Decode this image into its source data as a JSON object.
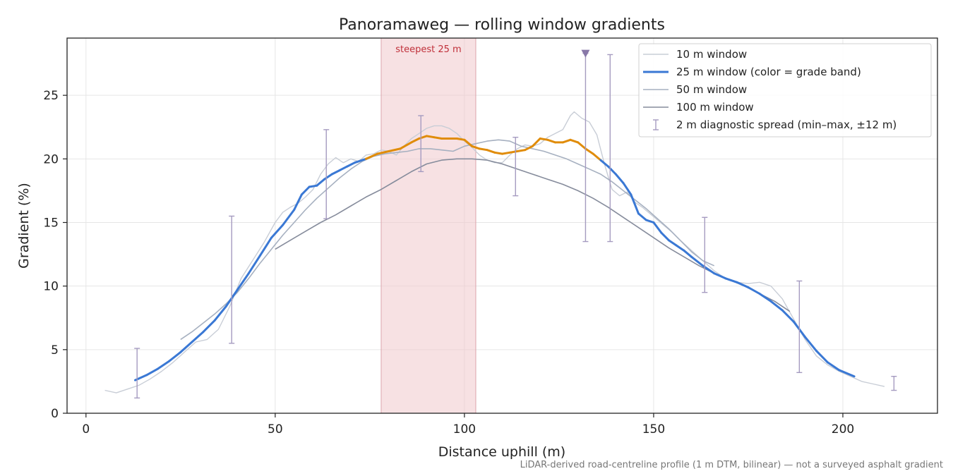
{
  "chart_data": {
    "type": "line",
    "title": "Panoramaweg — rolling window gradients",
    "xlabel": "Distance uphill (m)",
    "ylabel": "Gradient (%)",
    "xlim": [
      -5,
      225
    ],
    "ylim": [
      0,
      29.5
    ],
    "x_ticks": [
      0,
      50,
      100,
      150,
      200
    ],
    "y_ticks": [
      0,
      5,
      10,
      15,
      20,
      25
    ],
    "grid": true,
    "legend_position": "top-right",
    "footnote": "LiDAR-derived road-centreline profile (1 m DTM, bilinear) — not a surveyed asphalt gradient",
    "highlight": {
      "label": "steepest 25 m",
      "x_start": 78,
      "x_end": 103,
      "color": "#f0c8cc"
    },
    "marker": {
      "x": 132,
      "y": 28.3,
      "color": "#8878a8"
    },
    "grade_band_colors": {
      "below_20": "#3a78d4",
      "above_20": "#e08c0a"
    },
    "series": [
      {
        "name": "10 m window",
        "color": "#c8cdd6",
        "width": 1.4,
        "points": [
          [
            5,
            1.8
          ],
          [
            8,
            1.6
          ],
          [
            11,
            1.9
          ],
          [
            14,
            2.2
          ],
          [
            17,
            2.7
          ],
          [
            20,
            3.3
          ],
          [
            23,
            4.0
          ],
          [
            26,
            4.8
          ],
          [
            29,
            5.6
          ],
          [
            32,
            5.8
          ],
          [
            35,
            6.6
          ],
          [
            38,
            8.4
          ],
          [
            41,
            10.6
          ],
          [
            44,
            12.0
          ],
          [
            47,
            13.4
          ],
          [
            50,
            15.0
          ],
          [
            52,
            15.8
          ],
          [
            54,
            16.2
          ],
          [
            56,
            16.5
          ],
          [
            58,
            17.0
          ],
          [
            60,
            17.6
          ],
          [
            62,
            18.8
          ],
          [
            64,
            19.6
          ],
          [
            66,
            20.1
          ],
          [
            68,
            19.7
          ],
          [
            70,
            20.0
          ],
          [
            72,
            19.8
          ],
          [
            74,
            20.3
          ],
          [
            76,
            20.4
          ],
          [
            78,
            20.7
          ],
          [
            80,
            20.6
          ],
          [
            82,
            20.3
          ],
          [
            84,
            21.0
          ],
          [
            86,
            21.6
          ],
          [
            88,
            22.0
          ],
          [
            90,
            22.4
          ],
          [
            92,
            22.6
          ],
          [
            94,
            22.6
          ],
          [
            96,
            22.4
          ],
          [
            98,
            22.0
          ],
          [
            100,
            21.4
          ],
          [
            102,
            20.9
          ],
          [
            104,
            20.3
          ],
          [
            106,
            19.9
          ],
          [
            108,
            19.7
          ],
          [
            110,
            19.7
          ],
          [
            112,
            20.3
          ],
          [
            114,
            20.8
          ],
          [
            116,
            21.1
          ],
          [
            118,
            21.0
          ],
          [
            120,
            21.2
          ],
          [
            122,
            21.7
          ],
          [
            124,
            22.0
          ],
          [
            126,
            22.3
          ],
          [
            128,
            23.4
          ],
          [
            129,
            23.7
          ],
          [
            131,
            23.2
          ],
          [
            133,
            22.9
          ],
          [
            135,
            21.9
          ],
          [
            137,
            19.6
          ],
          [
            139,
            17.6
          ],
          [
            141,
            17.1
          ],
          [
            143,
            17.4
          ],
          [
            145,
            16.6
          ],
          [
            147,
            16.2
          ],
          [
            149,
            15.7
          ],
          [
            151,
            15.2
          ],
          [
            153,
            14.7
          ],
          [
            155,
            14.2
          ],
          [
            157,
            13.6
          ],
          [
            160,
            12.8
          ],
          [
            163,
            12.0
          ],
          [
            166,
            11.2
          ],
          [
            169,
            10.6
          ],
          [
            172,
            10.3
          ],
          [
            175,
            10.2
          ],
          [
            178,
            10.3
          ],
          [
            181,
            10.0
          ],
          [
            184,
            9.0
          ],
          [
            187,
            7.4
          ],
          [
            190,
            5.8
          ],
          [
            193,
            4.5
          ],
          [
            196,
            3.8
          ],
          [
            199,
            3.3
          ],
          [
            202,
            2.9
          ],
          [
            205,
            2.5
          ],
          [
            208,
            2.3
          ],
          [
            211,
            2.1
          ]
        ]
      },
      {
        "name": "25 m window (color = grade band)",
        "color": "#3a78d4",
        "width": 3,
        "points": [
          [
            13,
            2.6
          ],
          [
            16,
            3.0
          ],
          [
            19,
            3.5
          ],
          [
            22,
            4.1
          ],
          [
            25,
            4.8
          ],
          [
            28,
            5.6
          ],
          [
            31,
            6.4
          ],
          [
            34,
            7.3
          ],
          [
            37,
            8.4
          ],
          [
            40,
            9.7
          ],
          [
            43,
            11.0
          ],
          [
            46,
            12.4
          ],
          [
            49,
            13.8
          ],
          [
            52,
            14.8
          ],
          [
            55,
            16.0
          ],
          [
            57,
            17.2
          ],
          [
            59,
            17.8
          ],
          [
            61,
            17.9
          ],
          [
            63,
            18.4
          ],
          [
            65,
            18.8
          ],
          [
            67,
            19.1
          ],
          [
            69,
            19.4
          ],
          [
            71,
            19.7
          ],
          [
            74,
            20.0
          ],
          [
            77,
            20.4
          ],
          [
            80,
            20.6
          ],
          [
            83,
            20.8
          ],
          [
            86,
            21.3
          ],
          [
            88,
            21.6
          ],
          [
            90,
            21.8
          ],
          [
            92,
            21.7
          ],
          [
            94,
            21.6
          ],
          [
            96,
            21.6
          ],
          [
            98,
            21.6
          ],
          [
            100,
            21.5
          ],
          [
            102,
            21.0
          ],
          [
            104,
            20.8
          ],
          [
            106,
            20.7
          ],
          [
            108,
            20.5
          ],
          [
            110,
            20.4
          ],
          [
            112,
            20.5
          ],
          [
            114,
            20.6
          ],
          [
            116,
            20.7
          ],
          [
            118,
            21.0
          ],
          [
            120,
            21.6
          ],
          [
            122,
            21.5
          ],
          [
            124,
            21.3
          ],
          [
            126,
            21.3
          ],
          [
            128,
            21.5
          ],
          [
            130,
            21.3
          ],
          [
            132,
            20.8
          ],
          [
            134,
            20.4
          ],
          [
            136,
            19.9
          ],
          [
            138,
            19.4
          ],
          [
            140,
            18.8
          ],
          [
            142,
            18.1
          ],
          [
            144,
            17.2
          ],
          [
            146,
            15.7
          ],
          [
            148,
            15.2
          ],
          [
            150,
            15.0
          ],
          [
            152,
            14.2
          ],
          [
            154,
            13.6
          ],
          [
            156,
            13.2
          ],
          [
            158,
            12.8
          ],
          [
            160,
            12.3
          ],
          [
            163,
            11.6
          ],
          [
            166,
            11.0
          ],
          [
            169,
            10.6
          ],
          [
            172,
            10.3
          ],
          [
            175,
            9.9
          ],
          [
            178,
            9.4
          ],
          [
            181,
            8.8
          ],
          [
            184,
            8.1
          ],
          [
            187,
            7.2
          ],
          [
            190,
            6.0
          ],
          [
            193,
            4.9
          ],
          [
            196,
            4.0
          ],
          [
            199,
            3.4
          ],
          [
            203,
            2.9
          ]
        ]
      },
      {
        "name": "50 m window",
        "color": "#a6b0c0",
        "width": 1.6,
        "points": [
          [
            25,
            5.8
          ],
          [
            28,
            6.4
          ],
          [
            31,
            7.1
          ],
          [
            34,
            7.8
          ],
          [
            37,
            8.6
          ],
          [
            40,
            9.5
          ],
          [
            43,
            10.6
          ],
          [
            46,
            11.8
          ],
          [
            49,
            12.9
          ],
          [
            52,
            14.0
          ],
          [
            55,
            15.0
          ],
          [
            58,
            16.0
          ],
          [
            61,
            16.9
          ],
          [
            64,
            17.7
          ],
          [
            67,
            18.5
          ],
          [
            70,
            19.2
          ],
          [
            73,
            19.8
          ],
          [
            76,
            20.2
          ],
          [
            79,
            20.4
          ],
          [
            82,
            20.5
          ],
          [
            85,
            20.6
          ],
          [
            88,
            20.8
          ],
          [
            91,
            20.8
          ],
          [
            94,
            20.7
          ],
          [
            97,
            20.6
          ],
          [
            100,
            21.0
          ],
          [
            103,
            21.2
          ],
          [
            106,
            21.4
          ],
          [
            109,
            21.5
          ],
          [
            112,
            21.4
          ],
          [
            115,
            21.0
          ],
          [
            118,
            20.8
          ],
          [
            121,
            20.6
          ],
          [
            124,
            20.3
          ],
          [
            127,
            20.0
          ],
          [
            130,
            19.6
          ],
          [
            133,
            19.2
          ],
          [
            136,
            18.8
          ],
          [
            139,
            18.2
          ],
          [
            142,
            17.5
          ],
          [
            145,
            16.8
          ],
          [
            148,
            16.1
          ],
          [
            151,
            15.3
          ],
          [
            154,
            14.5
          ],
          [
            157,
            13.6
          ],
          [
            160,
            12.7
          ],
          [
            163,
            12.0
          ],
          [
            166,
            11.6
          ]
        ]
      },
      {
        "name": "100 m window",
        "color": "#868c9c",
        "width": 1.6,
        "points": [
          [
            50,
            12.9
          ],
          [
            54,
            13.6
          ],
          [
            58,
            14.3
          ],
          [
            62,
            15.0
          ],
          [
            66,
            15.6
          ],
          [
            70,
            16.3
          ],
          [
            74,
            17.0
          ],
          [
            78,
            17.6
          ],
          [
            82,
            18.3
          ],
          [
            86,
            19.0
          ],
          [
            90,
            19.6
          ],
          [
            94,
            19.9
          ],
          [
            98,
            20.0
          ],
          [
            102,
            20.0
          ],
          [
            106,
            19.9
          ],
          [
            110,
            19.6
          ],
          [
            114,
            19.2
          ],
          [
            118,
            18.8
          ],
          [
            122,
            18.4
          ],
          [
            126,
            18.0
          ],
          [
            130,
            17.5
          ],
          [
            134,
            16.9
          ],
          [
            138,
            16.2
          ],
          [
            142,
            15.4
          ],
          [
            146,
            14.6
          ],
          [
            150,
            13.8
          ],
          [
            154,
            13.0
          ],
          [
            158,
            12.3
          ],
          [
            162,
            11.6
          ],
          [
            166,
            11.0
          ],
          [
            170,
            10.5
          ],
          [
            174,
            10.0
          ],
          [
            178,
            9.4
          ],
          [
            182,
            8.8
          ],
          [
            186,
            8.0
          ]
        ]
      }
    ],
    "error_bars": {
      "name": "2 m diagnostic spread (min–max, ±12 m)",
      "color": "#a59bc0",
      "bars": [
        {
          "x": 13.5,
          "low": 1.2,
          "high": 5.1
        },
        {
          "x": 38.5,
          "low": 5.5,
          "high": 15.5
        },
        {
          "x": 63.5,
          "low": 15.3,
          "high": 22.3
        },
        {
          "x": 88.5,
          "low": 19.0,
          "high": 23.4
        },
        {
          "x": 113.5,
          "low": 17.1,
          "high": 21.7
        },
        {
          "x": 132,
          "low": 13.5,
          "high": 28.3
        },
        {
          "x": 138.5,
          "low": 13.5,
          "high": 28.2
        },
        {
          "x": 163.5,
          "low": 9.5,
          "high": 15.4
        },
        {
          "x": 188.5,
          "low": 3.2,
          "high": 10.4
        },
        {
          "x": 213.5,
          "low": 1.8,
          "high": 2.9
        }
      ]
    }
  }
}
